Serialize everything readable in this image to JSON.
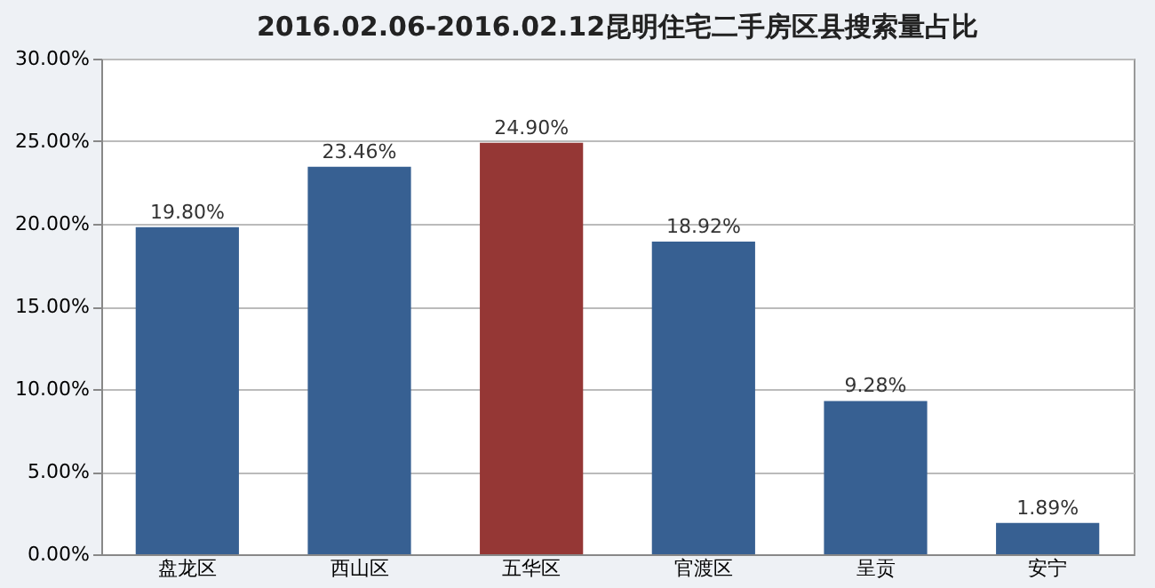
{
  "chart_data": {
    "type": "bar",
    "title": "2016.02.06-2016.02.12昆明住宅二手房区县搜索量占比",
    "categories": [
      "盘龙区",
      "西山区",
      "五华区",
      "官渡区",
      "呈贡",
      "安宁"
    ],
    "values": [
      19.8,
      23.46,
      24.9,
      18.92,
      9.28,
      1.89
    ],
    "colors": [
      "#376092",
      "#376092",
      "#953735",
      "#376092",
      "#376092",
      "#376092"
    ],
    "value_labels": [
      "19.80%",
      "23.46%",
      "24.90%",
      "18.92%",
      "9.28%",
      "1.89%"
    ],
    "ylim": [
      0,
      30
    ],
    "yticks": [
      {
        "value": 0,
        "label": "0.00%"
      },
      {
        "value": 5,
        "label": "5.00%"
      },
      {
        "value": 10,
        "label": "10.00%"
      },
      {
        "value": 15,
        "label": "15.00%"
      },
      {
        "value": 20,
        "label": "20.00%"
      },
      {
        "value": 25,
        "label": "25.00%"
      },
      {
        "value": 30,
        "label": "30.00%"
      }
    ],
    "grid": "y",
    "legend": false
  }
}
